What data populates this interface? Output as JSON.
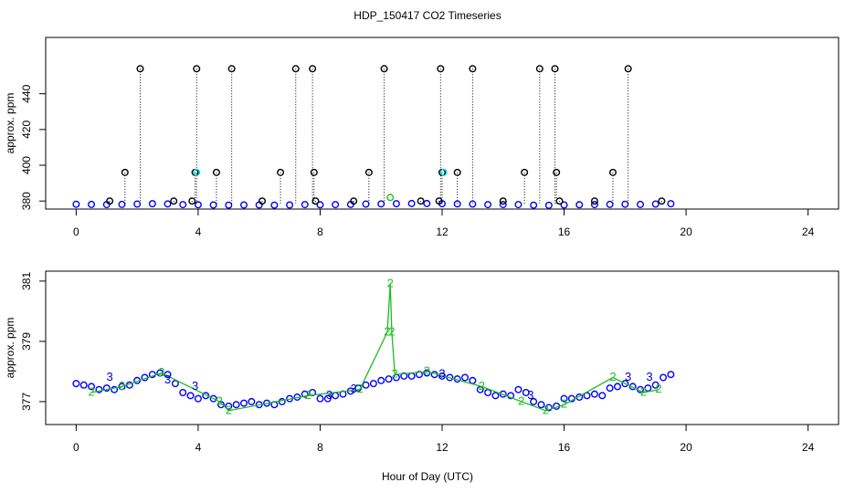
{
  "chart_data": [
    {
      "type": "scatter",
      "title": "HDP_150417  CO2 Timeseries",
      "ylabel": "approx. ppm",
      "xlim": [
        -1,
        25
      ],
      "xticks": [
        0,
        4,
        8,
        12,
        16,
        20,
        24
      ],
      "ylim": [
        375.5,
        471.5
      ],
      "yticks": [
        380,
        400,
        420,
        440
      ],
      "series": [
        {
          "pch": "circle",
          "color": "#0000ff",
          "x": [
            0,
            0.5,
            1,
            1.5,
            2,
            2.5,
            3,
            3.5,
            4,
            4.5,
            5,
            5.5,
            6,
            6.5,
            7,
            7.5,
            8,
            8.5,
            9,
            9.5,
            10,
            10.5,
            11,
            11.5,
            12,
            12.5,
            13,
            13.5,
            14,
            14.5,
            15,
            15.5,
            16,
            16.5,
            17,
            17.5,
            18,
            18.5,
            19,
            19.5
          ],
          "values": [
            378.2,
            378.1,
            378.0,
            378.1,
            378.3,
            378.5,
            378.4,
            378.0,
            377.9,
            377.8,
            377.7,
            377.8,
            377.8,
            377.7,
            377.8,
            378.0,
            377.9,
            378.0,
            378.1,
            378.3,
            378.4,
            378.5,
            378.6,
            378.6,
            378.5,
            378.4,
            378.3,
            378.0,
            378.0,
            378.0,
            377.7,
            377.6,
            377.8,
            377.9,
            378.0,
            378.1,
            378.2,
            378.1,
            378.3,
            378.5
          ]
        },
        {
          "pch": "circle",
          "color": "#000000",
          "drop_lines": true,
          "x": [
            1.1,
            1.6,
            2.1,
            3.2,
            3.8,
            3.9,
            3.95,
            4.6,
            5.1,
            6.1,
            6.7,
            7.2,
            7.75,
            7.8,
            7.85,
            9.1,
            9.6,
            10.1,
            11.3,
            11.9,
            11.95,
            12.0,
            12.5,
            13.0,
            14.0,
            14.7,
            15.2,
            15.7,
            15.75,
            15.85,
            17.0,
            17.6,
            18.1,
            19.2
          ],
          "values": [
            380,
            396,
            454,
            380,
            380,
            396,
            454,
            396,
            454,
            380,
            396,
            454,
            454,
            396,
            380,
            380,
            396,
            454,
            380,
            380,
            454,
            396,
            396,
            454,
            380,
            396,
            454,
            454,
            396,
            380,
            380,
            396,
            454,
            380
          ]
        },
        {
          "pch": "circle",
          "color": "#00e5ee",
          "x": [
            3.95,
            12.05
          ],
          "values": [
            396,
            396
          ]
        },
        {
          "pch": "circle",
          "color": "#22bb22",
          "x": [
            10.3
          ],
          "values": [
            382
          ]
        }
      ]
    },
    {
      "type": "scatter",
      "ylabel": "approx. ppm",
      "xlabel": "Hour of Day (UTC)",
      "xlim": [
        -1,
        25
      ],
      "xticks": [
        0,
        4,
        8,
        12,
        16,
        20,
        24
      ],
      "ylim": [
        376.24,
        381.33
      ],
      "yticks": [
        377,
        379,
        381
      ],
      "series": [
        {
          "pch": "circle",
          "color": "#0000ff",
          "x": [
            0,
            0.25,
            0.5,
            0.75,
            1,
            1.25,
            1.5,
            1.75,
            2,
            2.25,
            2.5,
            2.75,
            3,
            3.25,
            3.5,
            3.75,
            4,
            4.25,
            4.5,
            4.75,
            5,
            5.25,
            5.5,
            5.75,
            6,
            6.25,
            6.5,
            6.75,
            7,
            7.25,
            7.5,
            7.75,
            8,
            8.25,
            8.5,
            8.75,
            9,
            9.25,
            9.5,
            9.75,
            10,
            10.25,
            10.5,
            10.75,
            11,
            11.25,
            11.5,
            11.75,
            12,
            12.25,
            12.5,
            12.75,
            13,
            13.25,
            13.5,
            13.75,
            14,
            14.25,
            14.5,
            14.75,
            15,
            15.25,
            15.5,
            15.75,
            16,
            16.25,
            16.5,
            16.75,
            17,
            17.25,
            17.5,
            17.75,
            18,
            18.25,
            18.5,
            18.75,
            19,
            19.25,
            19.5
          ],
          "values": [
            377.6,
            377.55,
            377.5,
            377.4,
            377.45,
            377.4,
            377.5,
            377.55,
            377.7,
            377.8,
            377.9,
            377.95,
            377.9,
            377.6,
            377.3,
            377.2,
            377.1,
            377.2,
            377.1,
            376.9,
            376.85,
            376.9,
            376.95,
            377.0,
            376.9,
            376.95,
            376.9,
            377.0,
            377.1,
            377.15,
            377.25,
            377.3,
            377.1,
            377.1,
            377.2,
            377.25,
            377.35,
            377.45,
            377.55,
            377.6,
            377.7,
            377.75,
            377.8,
            377.85,
            377.85,
            377.9,
            377.95,
            377.9,
            377.85,
            377.8,
            377.75,
            377.8,
            377.7,
            377.4,
            377.3,
            377.2,
            377.25,
            377.2,
            377.4,
            377.3,
            377.0,
            376.9,
            376.8,
            376.85,
            377.1,
            377.1,
            377.15,
            377.2,
            377.25,
            377.2,
            377.45,
            377.5,
            377.6,
            377.5,
            377.4,
            377.45,
            377.55,
            377.8,
            377.9
          ]
        },
        {
          "pch": "2",
          "color": "#22bb22",
          "line": true,
          "x": [
            0.5,
            1.5,
            2.8,
            4.7,
            5,
            7.6,
            9.3,
            10.2,
            10.3,
            10.35,
            10.45,
            11.5,
            13.3,
            14.6,
            15.4,
            16,
            17.6,
            18.6,
            19.1
          ],
          "values": [
            377.3,
            377.5,
            377.95,
            377.0,
            376.7,
            377.2,
            377.4,
            379.3,
            380.9,
            379.3,
            377.9,
            378.0,
            377.5,
            377.0,
            376.7,
            376.9,
            377.8,
            377.3,
            377.4
          ]
        },
        {
          "pch": "3",
          "color": "#0000cc",
          "x": [
            1.1,
            3,
            3.9,
            8.3,
            9.1,
            12,
            14.9,
            18.1,
            18.8
          ],
          "values": [
            377.8,
            377.7,
            377.5,
            377.2,
            377.4,
            377.9,
            377.2,
            377.8,
            377.8
          ]
        }
      ]
    }
  ]
}
